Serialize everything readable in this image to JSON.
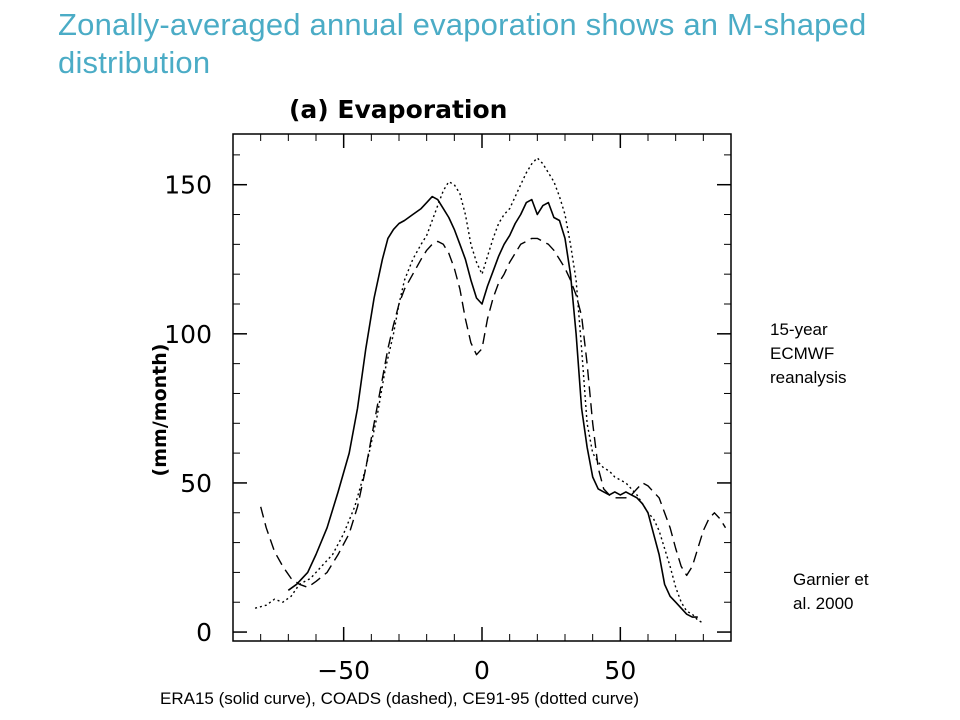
{
  "slide": {
    "title": "Zonally-averaged annual evaporation shows an M-shaped distribution",
    "title_color": "#4bacc6",
    "note_reanalysis": "15-year\nECMWF\nreanalysis",
    "note_garnier": "Garnier et\nal. 2000",
    "caption": "ERA15 (solid curve), COADS (dashed), CE91-95 (dotted curve)"
  },
  "chart_data": {
    "type": "line",
    "title": "(a) Evaporation",
    "xlabel": "",
    "ylabel": "(mm/month)",
    "xlim": [
      -90,
      90
    ],
    "ylim": [
      -3,
      167
    ],
    "xticks": [
      -50,
      0,
      50
    ],
    "yticks": [
      0,
      50,
      100,
      150
    ],
    "xtick_labels": [
      "−50",
      "0",
      "50"
    ],
    "ytick_labels": [
      "0",
      "50",
      "100",
      "150"
    ],
    "grid": false,
    "legend": "none",
    "series": [
      {
        "style": "solid",
        "x": [
          -70,
          -67,
          -63,
          -60,
          -56,
          -52,
          -48,
          -45,
          -42,
          -39,
          -36,
          -34,
          -32,
          -30,
          -28,
          -25,
          -22,
          -20,
          -18,
          -16,
          -14,
          -12,
          -10,
          -8,
          -6,
          -4,
          -2,
          0,
          2,
          4,
          6,
          8,
          10,
          12,
          14,
          16,
          18,
          20,
          22,
          24,
          26,
          28,
          30,
          32,
          34,
          36,
          38,
          40,
          42,
          44,
          46,
          48,
          50,
          52,
          54,
          56,
          58,
          60,
          62,
          64,
          66,
          68,
          70,
          72,
          74,
          76,
          78
        ],
        "y": [
          14,
          16,
          20,
          26,
          35,
          47,
          60,
          75,
          95,
          112,
          125,
          132,
          135,
          137,
          138,
          140,
          142,
          144,
          146,
          145,
          142,
          139,
          135,
          130,
          125,
          118,
          112,
          110,
          116,
          121,
          126,
          130,
          133,
          137,
          140,
          144,
          145,
          140,
          143,
          144,
          139,
          138,
          132,
          120,
          100,
          75,
          62,
          52,
          48,
          47,
          46,
          47,
          46,
          47,
          46,
          45,
          43,
          40,
          33,
          26,
          16,
          12,
          10,
          8,
          6,
          5,
          5
        ]
      },
      {
        "style": "dashed",
        "x": [
          -80,
          -78,
          -75,
          -72,
          -69,
          -66,
          -63,
          -60,
          -56,
          -52,
          -48,
          -45,
          -42,
          -39,
          -36,
          -34,
          -32,
          -30,
          -28,
          -25,
          -22,
          -20,
          -18,
          -16,
          -14,
          -12,
          -10,
          -8,
          -6,
          -4,
          -2,
          0,
          2,
          4,
          6,
          8,
          10,
          12,
          14,
          16,
          18,
          20,
          22,
          24,
          26,
          28,
          30,
          32,
          34,
          36,
          38,
          40,
          42,
          44,
          46,
          48,
          50,
          52,
          54,
          56,
          58,
          60,
          62,
          64,
          66,
          68,
          70,
          72,
          74,
          76,
          78,
          80,
          82,
          84,
          86,
          88
        ],
        "y": [
          42,
          35,
          27,
          22,
          18,
          16,
          15,
          17,
          20,
          26,
          33,
          42,
          55,
          70,
          85,
          95,
          103,
          110,
          115,
          120,
          125,
          128,
          130,
          131,
          130,
          127,
          122,
          115,
          105,
          97,
          93,
          95,
          105,
          112,
          117,
          120,
          124,
          127,
          130,
          131,
          132,
          132,
          131,
          130,
          128,
          125,
          122,
          118,
          113,
          106,
          90,
          70,
          55,
          48,
          46,
          45,
          45,
          45,
          46,
          48,
          50,
          49,
          47,
          45,
          40,
          35,
          28,
          22,
          19,
          22,
          28,
          34,
          38,
          40,
          38,
          35
        ]
      },
      {
        "style": "dotted",
        "x": [
          -82,
          -78,
          -75,
          -72,
          -69,
          -66,
          -62,
          -58,
          -54,
          -50,
          -46,
          -42,
          -38,
          -35,
          -32,
          -30,
          -28,
          -25,
          -22,
          -20,
          -18,
          -16,
          -14,
          -12,
          -10,
          -8,
          -6,
          -4,
          -2,
          0,
          2,
          4,
          6,
          8,
          10,
          12,
          14,
          16,
          18,
          20,
          22,
          24,
          26,
          28,
          30,
          32,
          34,
          36,
          38,
          40,
          42,
          44,
          46,
          48,
          50,
          52,
          54,
          56,
          58,
          60,
          62,
          64,
          66,
          68,
          70,
          72,
          74,
          76,
          78,
          80
        ],
        "y": [
          8,
          9,
          11,
          10,
          12,
          16,
          18,
          22,
          26,
          33,
          42,
          55,
          72,
          88,
          100,
          110,
          118,
          125,
          130,
          133,
          138,
          143,
          148,
          151,
          150,
          147,
          140,
          130,
          124,
          120,
          126,
          132,
          137,
          140,
          142,
          146,
          150,
          154,
          157,
          159,
          157,
          154,
          151,
          146,
          140,
          130,
          118,
          95,
          70,
          60,
          57,
          55,
          54,
          52,
          51,
          50,
          48,
          46,
          43,
          40,
          38,
          34,
          28,
          22,
          15,
          10,
          7,
          6,
          4,
          3
        ]
      }
    ]
  }
}
